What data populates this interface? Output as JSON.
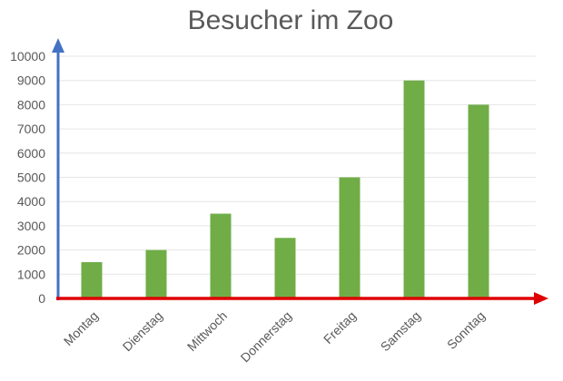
{
  "chart_data": {
    "type": "bar",
    "title": "Besucher im Zoo",
    "xlabel": "",
    "ylabel": "",
    "categories": [
      "Montag",
      "Dienstag",
      "Mittwoch",
      "Donnerstag",
      "Freitag",
      "Samstag",
      "Sonntag"
    ],
    "values": [
      1500,
      2000,
      3500,
      2500,
      5000,
      9000,
      8000
    ],
    "ylim": [
      0,
      10000
    ],
    "yticks": [
      0,
      1000,
      2000,
      3000,
      4000,
      5000,
      6000,
      7000,
      8000,
      9000,
      10000
    ],
    "grid": true,
    "legend": null,
    "colors": {
      "bar": "#70ad47",
      "x_axis": "#e00000",
      "y_axis": "#4472c4",
      "grid": "#e6e6e6",
      "text": "#595959"
    }
  }
}
